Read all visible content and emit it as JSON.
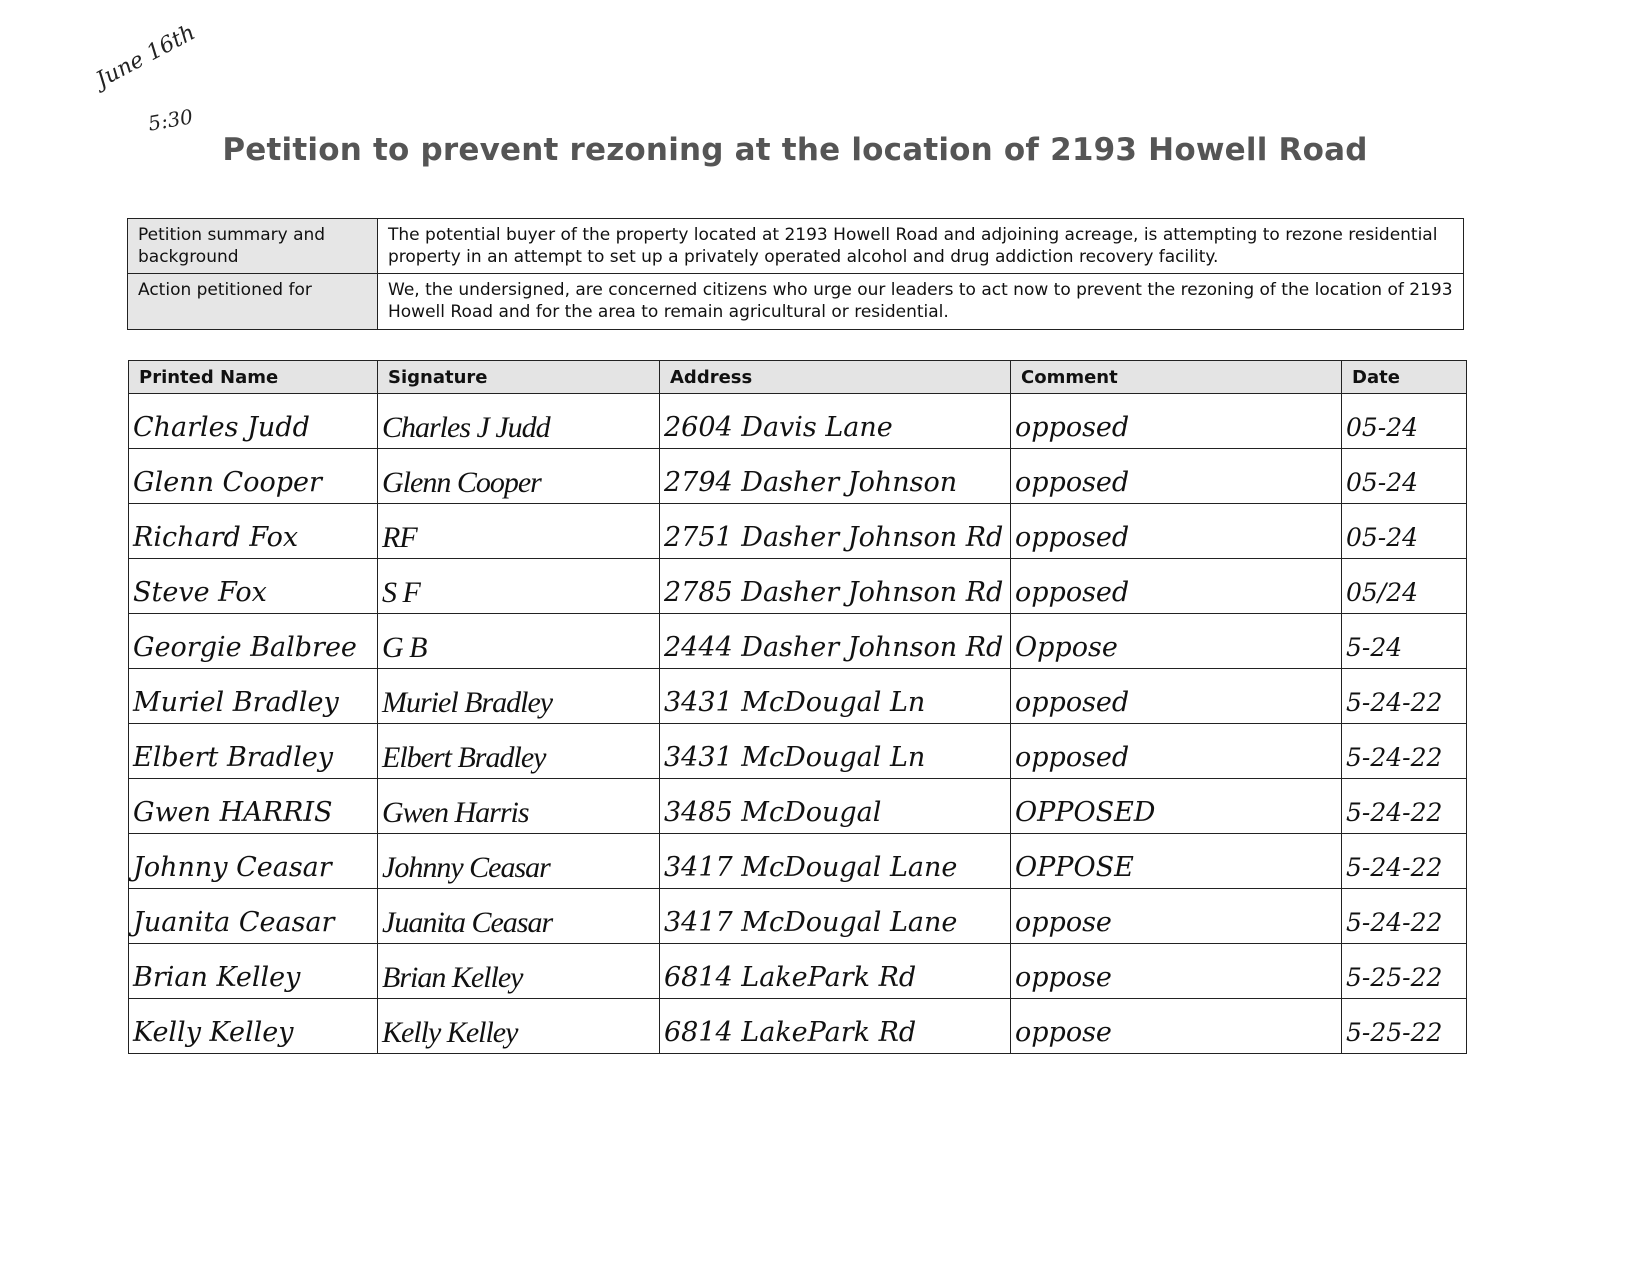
{
  "annotations": {
    "date": "June 16th",
    "time": "5:30"
  },
  "title": "Petition to prevent rezoning at the location of 2193 Howell Road",
  "summary": [
    {
      "label": "Petition summary and background",
      "text": "The potential buyer of the property located at 2193 Howell Road and adjoining acreage, is attempting to rezone residential property in an attempt to set up a privately operated alcohol and drug addiction recovery facility."
    },
    {
      "label": "Action petitioned for",
      "text": "We, the undersigned, are concerned citizens who urge our leaders to act now to prevent the rezoning of the location of 2193 Howell Road and for the area to remain agricultural or residential."
    }
  ],
  "columns": [
    "Printed Name",
    "Signature",
    "Address",
    "Comment",
    "Date"
  ],
  "rows": [
    {
      "name": "Charles Judd",
      "signature": "Charles J Judd",
      "address": "2604 Davis Lane",
      "comment": "opposed",
      "date": "05-24"
    },
    {
      "name": "Glenn Cooper",
      "signature": "Glenn Cooper",
      "address": "2794 Dasher Johnson",
      "comment": "opposed",
      "date": "05-24"
    },
    {
      "name": "Richard Fox",
      "signature": "RF",
      "address": "2751 Dasher Johnson Rd",
      "comment": "opposed",
      "date": "05-24"
    },
    {
      "name": "Steve Fox",
      "signature": "S F",
      "address": "2785 Dasher Johnson Rd",
      "comment": "opposed",
      "date": "05/24"
    },
    {
      "name": "Georgie Balbree",
      "signature": "G B",
      "address": "2444 Dasher Johnson Rd",
      "comment": "Oppose",
      "date": "5-24"
    },
    {
      "name": "Muriel Bradley",
      "signature": "Muriel Bradley",
      "address": "3431 McDougal Ln",
      "comment": "opposed",
      "date": "5-24-22"
    },
    {
      "name": "Elbert Bradley",
      "signature": "Elbert Bradley",
      "address": "3431 McDougal Ln",
      "comment": "opposed",
      "date": "5-24-22"
    },
    {
      "name": "Gwen HARRIS",
      "signature": "Gwen Harris",
      "address": "3485 McDougal",
      "comment": "OPPOSED",
      "date": "5-24-22"
    },
    {
      "name": "Johnny Ceasar",
      "signature": "Johnny Ceasar",
      "address": "3417 McDougal Lane",
      "comment": "OPPOSE",
      "date": "5-24-22"
    },
    {
      "name": "Juanita Ceasar",
      "signature": "Juanita Ceasar",
      "address": "3417 McDougal Lane",
      "comment": "oppose",
      "date": "5-24-22"
    },
    {
      "name": "Brian Kelley",
      "signature": "Brian Kelley",
      "address": "6814 LakePark Rd",
      "comment": "oppose",
      "date": "5-25-22"
    },
    {
      "name": "Kelly Kelley",
      "signature": "Kelly Kelley",
      "address": "6814 LakePark Rd",
      "comment": "oppose",
      "date": "5-25-22"
    }
  ]
}
